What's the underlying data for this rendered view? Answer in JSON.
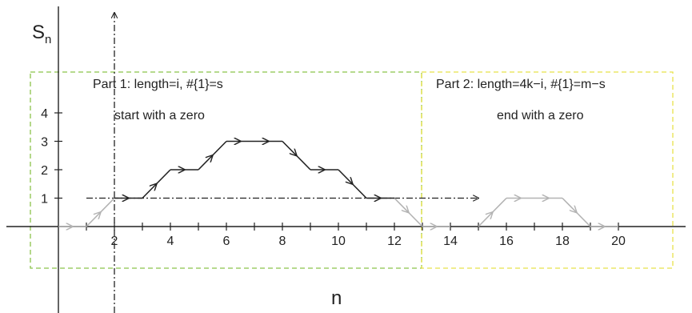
{
  "axes": {
    "y_label": "S",
    "y_label_sub": "n",
    "x_label": "n",
    "x_ticks": [
      "2",
      "4",
      "6",
      "8",
      "10",
      "12",
      "14",
      "16",
      "18",
      "20"
    ],
    "y_ticks": [
      "1",
      "2",
      "3",
      "4"
    ]
  },
  "parts": [
    {
      "title": "Part 1: length=i, #{1}=s",
      "subtitle": "start with a zero",
      "border_color": "#8bc34a"
    },
    {
      "title": "Part 2: length=4k−i, #{1}=m−s",
      "subtitle": "end with a zero",
      "border_color": "#e8e24a"
    }
  ],
  "colors": {
    "path_dark": "#222222",
    "path_light": "#b3b3b3",
    "axis": "#222222"
  },
  "path": {
    "dark": [
      [
        2,
        1
      ],
      [
        3,
        1
      ],
      [
        4,
        2
      ],
      [
        5,
        2
      ],
      [
        6,
        3
      ],
      [
        7,
        3
      ],
      [
        8,
        3
      ],
      [
        9,
        2
      ],
      [
        10,
        2
      ],
      [
        11,
        1
      ],
      [
        12,
        1
      ]
    ],
    "light_before": [
      [
        0,
        0
      ],
      [
        1,
        0
      ],
      [
        2,
        1
      ]
    ],
    "light_after": [
      [
        12,
        1
      ],
      [
        13,
        0
      ],
      [
        14,
        0
      ]
    ],
    "light_part2": [
      [
        15,
        0
      ],
      [
        16,
        1
      ],
      [
        17,
        1
      ],
      [
        18,
        1
      ],
      [
        19,
        0
      ],
      [
        20,
        0
      ]
    ]
  },
  "reference": {
    "vertical_x": 2,
    "horizontal_y": 1,
    "horizontal_from": 1,
    "horizontal_to": 15
  }
}
